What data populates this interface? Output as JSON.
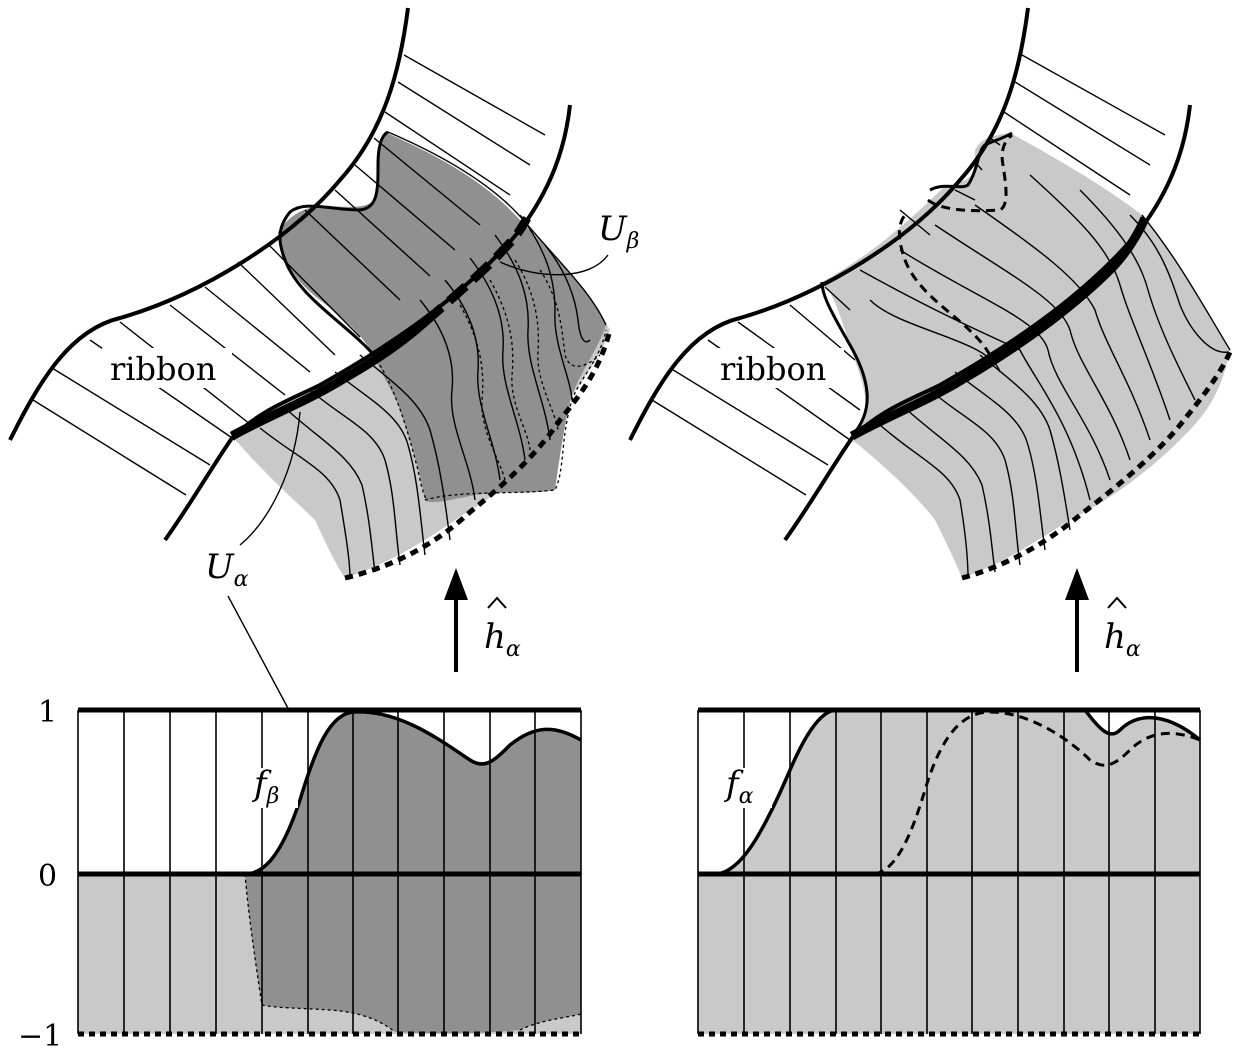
{
  "colors": {
    "ink": "#000000",
    "background": "#ffffff",
    "light_fill": "#c9c9c9",
    "dark_fill": "#909090"
  },
  "left_panel": {
    "ribbon_label": "ribbon",
    "u_beta_main": "U",
    "u_beta_sub": "β",
    "u_alpha_main": "U",
    "u_alpha_sub": "α",
    "arrow_label_main": "h",
    "arrow_label_sub": "α",
    "plot": {
      "tick_top": "1",
      "tick_mid": "0",
      "tick_bottom": "−1",
      "curve_label_main": "f",
      "curve_label_sub": "β"
    }
  },
  "right_panel": {
    "ribbon_label": "ribbon",
    "arrow_label_main": "h",
    "arrow_label_sub": "α",
    "plot": {
      "curve_label_main": "f",
      "curve_label_sub": "α"
    }
  }
}
